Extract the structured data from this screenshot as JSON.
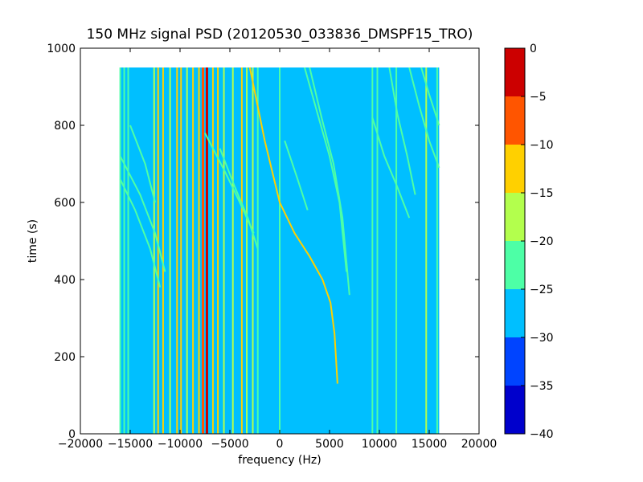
{
  "chart_data": {
    "type": "heatmap",
    "title": "150 MHz signal PSD (20120530_033836_DMSPF15_TRO)",
    "xlabel": "frequency (Hz)",
    "ylabel": "time (s)",
    "xlim": [
      -20000,
      20000
    ],
    "ylim": [
      0,
      1000
    ],
    "x_ticks": [
      -20000,
      -15000,
      -10000,
      -5000,
      0,
      5000,
      10000,
      15000,
      20000
    ],
    "y_ticks": [
      0,
      200,
      400,
      600,
      800,
      1000
    ],
    "data_extent": {
      "x": [
        -16000,
        16000
      ],
      "y": [
        0,
        950
      ]
    },
    "colorbar": {
      "range": [
        -40,
        0
      ],
      "ticks": [
        0,
        -5,
        -10,
        -15,
        -20,
        -25,
        -30,
        -35,
        -40
      ],
      "levels": [
        {
          "from": -40,
          "to": -35,
          "color": "#0000cc"
        },
        {
          "from": -35,
          "to": -30,
          "color": "#0044ff"
        },
        {
          "from": -30,
          "to": -25,
          "color": "#00bfff"
        },
        {
          "from": -25,
          "to": -20,
          "color": "#4dffa6"
        },
        {
          "from": -20,
          "to": -15,
          "color": "#b3ff4d"
        },
        {
          "from": -15,
          "to": -10,
          "color": "#ffd000"
        },
        {
          "from": -10,
          "to": -5,
          "color": "#ff5500"
        },
        {
          "from": -5,
          "to": 0,
          "color": "#cc0000"
        }
      ]
    },
    "background_level": -27.5,
    "carrier_lines": [
      {
        "f": -16000,
        "level": -22.5
      },
      {
        "f": -15600,
        "level": -22.5
      },
      {
        "f": -15200,
        "level": -22.5
      },
      {
        "f": -12600,
        "level": -17.5
      },
      {
        "f": -12200,
        "level": -12.5
      },
      {
        "f": -11700,
        "level": -12.5
      },
      {
        "f": -11000,
        "level": -17.5
      },
      {
        "f": -10300,
        "level": -12.5
      },
      {
        "f": -9900,
        "level": -12.5
      },
      {
        "f": -9300,
        "level": -17.5
      },
      {
        "f": -8700,
        "level": -12.5
      },
      {
        "f": -8100,
        "level": -12.5
      },
      {
        "f": -7700,
        "level": -7.5
      },
      {
        "f": -7300,
        "level": -2.5
      },
      {
        "f": -6700,
        "level": -12.5
      },
      {
        "f": -6200,
        "level": -12.5
      },
      {
        "f": -5600,
        "level": -17.5
      },
      {
        "f": -4700,
        "level": -17.5
      },
      {
        "f": -3800,
        "level": -12.5
      },
      {
        "f": -3300,
        "level": -17.5
      },
      {
        "f": -2700,
        "level": -17.5
      },
      {
        "f": -2200,
        "level": -22.5
      },
      {
        "f": 0,
        "level": -22.5
      },
      {
        "f": 9300,
        "level": -22.5
      },
      {
        "f": 9800,
        "level": -22.5
      },
      {
        "f": 11700,
        "level": -22.5
      },
      {
        "f": 14700,
        "level": -17.5
      },
      {
        "f": 15800,
        "level": -22.5
      }
    ],
    "doppler_tracks": [
      {
        "level": -12.5,
        "points": [
          [
            -3000,
            950
          ],
          [
            -1500,
            760
          ],
          [
            0,
            600
          ],
          [
            1500,
            520
          ],
          [
            3000,
            460
          ],
          [
            4300,
            400
          ],
          [
            5100,
            340
          ],
          [
            5500,
            260
          ],
          [
            5800,
            130
          ]
        ]
      },
      {
        "level": -22.5,
        "points": [
          [
            -16000,
            720
          ],
          [
            -14000,
            620
          ],
          [
            -12500,
            520
          ],
          [
            -11500,
            420
          ]
        ]
      },
      {
        "level": -22.5,
        "points": [
          [
            -16000,
            660
          ],
          [
            -14500,
            580
          ],
          [
            -13000,
            480
          ],
          [
            -12000,
            380
          ]
        ]
      },
      {
        "level": -22.5,
        "points": [
          [
            -15000,
            800
          ],
          [
            -13500,
            700
          ],
          [
            -12500,
            600
          ]
        ]
      },
      {
        "level": -22.5,
        "points": [
          [
            -7500,
            780
          ],
          [
            -5500,
            680
          ],
          [
            -4000,
            600
          ],
          [
            -2600,
            520
          ]
        ]
      },
      {
        "level": -22.5,
        "points": [
          [
            -6000,
            740
          ],
          [
            -4500,
            640
          ],
          [
            -3200,
            560
          ],
          [
            -2200,
            480
          ]
        ]
      },
      {
        "level": -22.5,
        "points": [
          [
            3000,
            950
          ],
          [
            4200,
            820
          ],
          [
            5400,
            700
          ],
          [
            6300,
            560
          ],
          [
            7000,
            360
          ]
        ]
      },
      {
        "level": -22.5,
        "points": [
          [
            2500,
            950
          ],
          [
            3800,
            830
          ],
          [
            5000,
            720
          ],
          [
            6000,
            600
          ],
          [
            6700,
            420
          ]
        ]
      },
      {
        "level": -22.5,
        "points": [
          [
            500,
            760
          ],
          [
            1800,
            660
          ],
          [
            2800,
            580
          ]
        ]
      },
      {
        "level": -22.5,
        "points": [
          [
            11000,
            950
          ],
          [
            11800,
            830
          ],
          [
            12800,
            720
          ],
          [
            13600,
            620
          ]
        ]
      },
      {
        "level": -22.5,
        "points": [
          [
            13000,
            950
          ],
          [
            14000,
            850
          ],
          [
            15000,
            760
          ],
          [
            16000,
            690
          ]
        ]
      },
      {
        "level": -22.5,
        "points": [
          [
            14200,
            950
          ],
          [
            15000,
            880
          ],
          [
            16000,
            800
          ]
        ]
      },
      {
        "level": -22.5,
        "points": [
          [
            9300,
            820
          ],
          [
            10500,
            720
          ],
          [
            11800,
            640
          ],
          [
            13000,
            560
          ]
        ]
      }
    ]
  }
}
